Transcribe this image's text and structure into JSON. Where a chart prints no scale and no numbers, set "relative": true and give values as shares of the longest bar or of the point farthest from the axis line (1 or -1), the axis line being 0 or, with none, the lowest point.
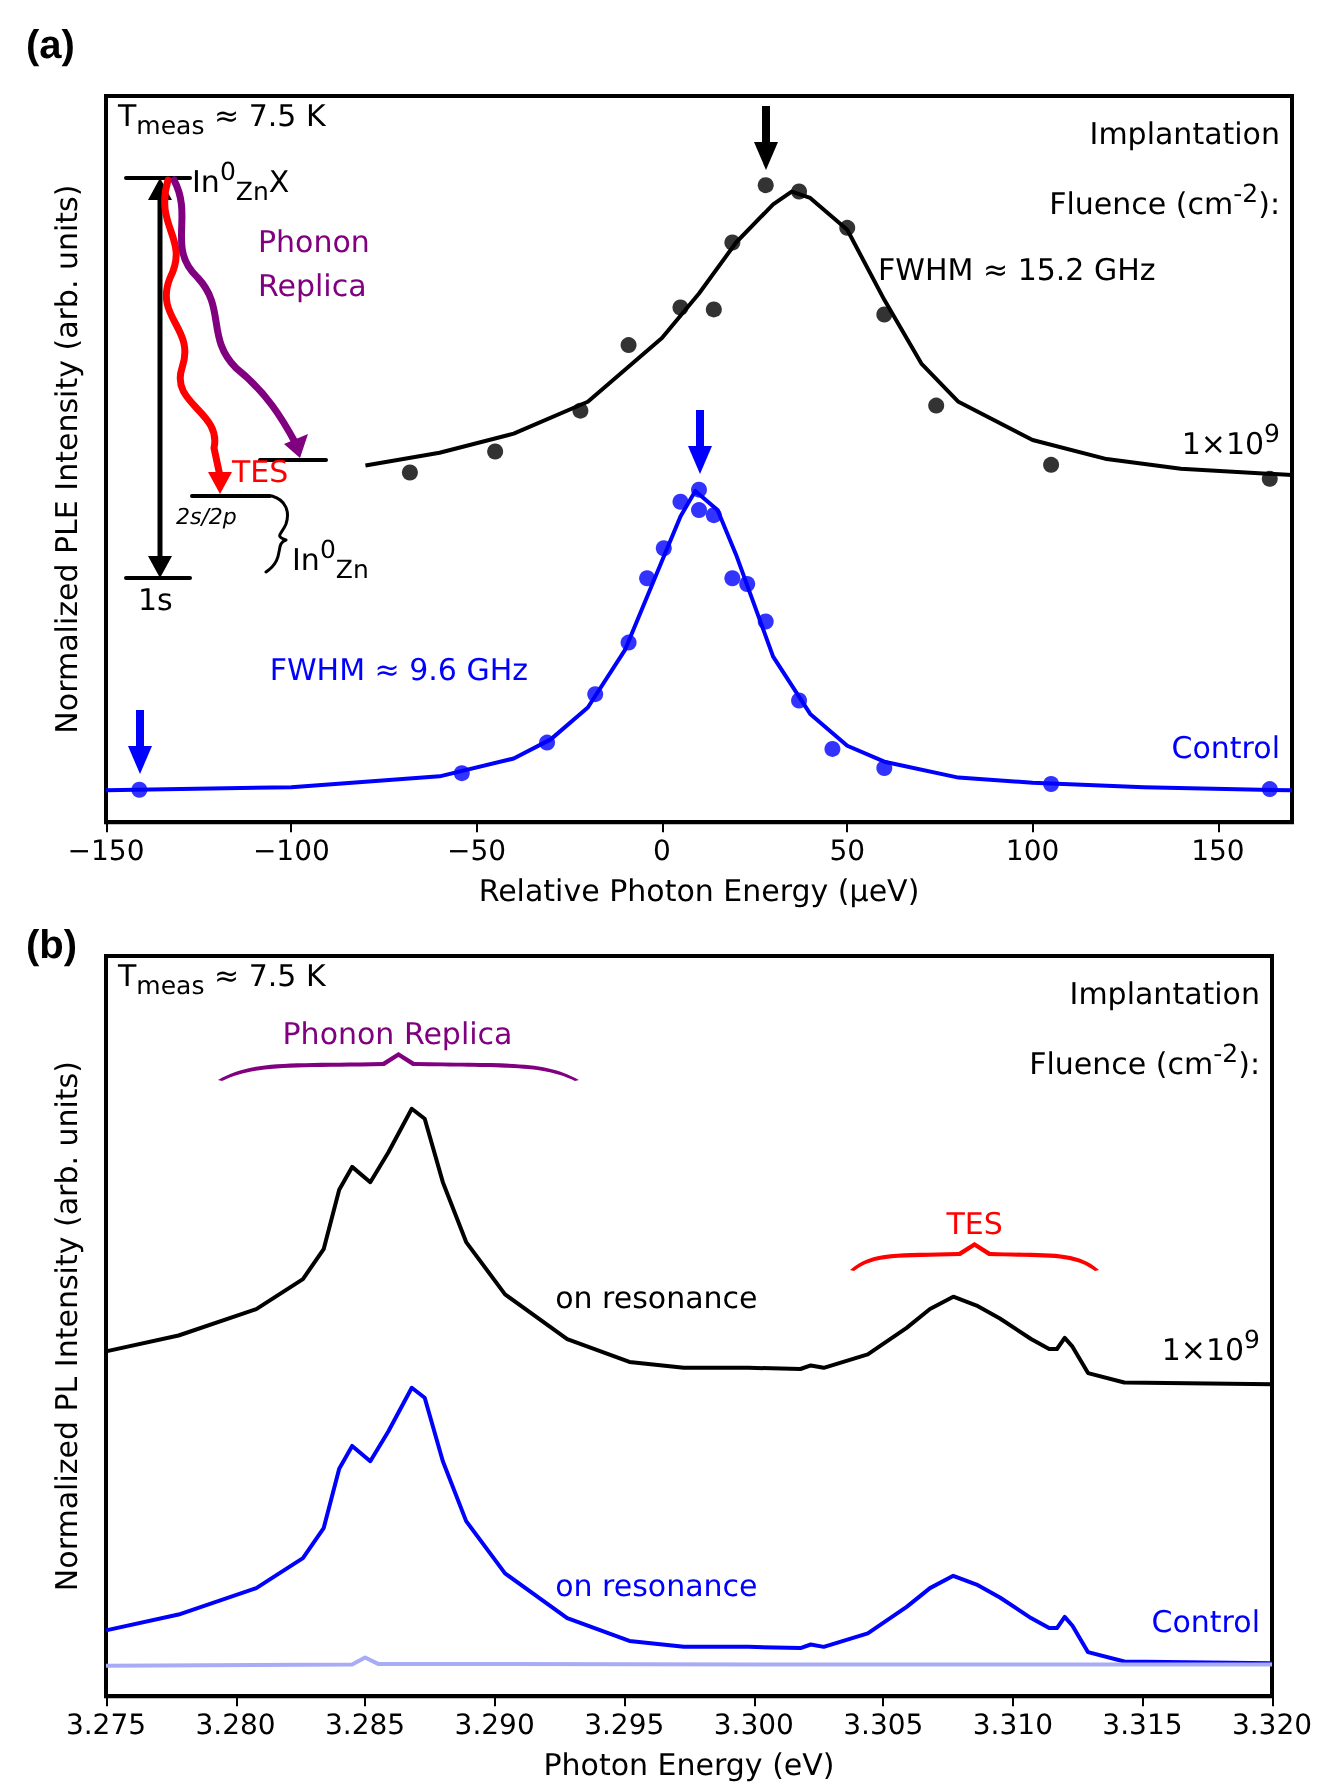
{
  "chart_data": [
    {
      "type": "scatter",
      "title": "(a)",
      "xlabel": "Relative Photon Energy (μeV)",
      "ylabel": "Normalized PLE Intensity (arb. units)",
      "legend_title": "Implantation Fluence (cm$^{-2}$):",
      "relative": true,
      "marker": "circle",
      "xlim": [
        -150,
        170
      ],
      "xticks": [
        -150,
        -100,
        -50,
        0,
        50,
        100,
        150
      ],
      "annotations": [
        "T$_{meas}$ ≈ 7.5 K",
        "FWHM ≈ 15.2 GHz",
        "FWHM ≈ 9.6 GHz",
        "In$^{0}$$_{Zn}$X",
        "Phonon Replica",
        "TES",
        "2s/2p",
        "In$^{0}$$_{Zn}$",
        "1s"
      ],
      "series": [
        {
          "name": "1×10$^{9}$",
          "color": "#000000",
          "x": [
            -68,
            -45,
            -22,
            -9,
            5,
            14,
            19,
            28,
            37,
            50,
            60,
            74,
            105,
            164
          ],
          "values": [
            0.549,
            0.582,
            0.646,
            0.749,
            0.808,
            0.805,
            0.91,
            1.0,
            0.99,
            0.933,
            0.797,
            0.654,
            0.561,
            0.539
          ]
        },
        {
          "type": "line",
          "marker": "none",
          "color": "#000000",
          "x": [
            -80,
            -60,
            -40,
            -20,
            0,
            10,
            20,
            30,
            35,
            40,
            50,
            60,
            70,
            80,
            100,
            120,
            140,
            170
          ],
          "values": [
            0.56,
            0.58,
            0.61,
            0.66,
            0.76,
            0.83,
            0.91,
            0.97,
            0.99,
            0.98,
            0.93,
            0.82,
            0.72,
            0.66,
            0.6,
            0.57,
            0.555,
            0.545
          ]
        },
        {
          "name": "Control",
          "color": "#0000ff",
          "x": [
            -141,
            -54,
            -31,
            -18,
            -9,
            -4,
            0.5,
            5,
            10,
            10,
            14,
            19,
            23,
            28,
            37,
            46,
            60,
            105,
            164
          ],
          "values": [
            0.051,
            0.077,
            0.125,
            0.201,
            0.282,
            0.383,
            0.43,
            0.503,
            0.522,
            0.49,
            0.482,
            0.383,
            0.374,
            0.315,
            0.191,
            0.115,
            0.085,
            0.06,
            0.052
          ]
        },
        {
          "type": "line",
          "marker": "none",
          "color": "#0000ff",
          "x": [
            -150,
            -100,
            -60,
            -40,
            -30,
            -20,
            -10,
            0,
            5,
            9,
            15,
            20,
            25,
            30,
            40,
            50,
            60,
            80,
            100,
            130,
            170
          ],
          "values": [
            0.05,
            0.055,
            0.072,
            0.1,
            0.13,
            0.18,
            0.27,
            0.41,
            0.48,
            0.52,
            0.49,
            0.42,
            0.34,
            0.26,
            0.17,
            0.12,
            0.095,
            0.07,
            0.062,
            0.055,
            0.05
          ]
        }
      ]
    },
    {
      "type": "line",
      "title": "(b)",
      "xlabel": "Photon Energy (eV)",
      "ylabel": "Normalized PL Intensity (arb. units)",
      "legend_title": "Implantation Fluence (cm$^{-2}$):",
      "relative": true,
      "xlim": [
        3.275,
        3.32
      ],
      "xticks": [
        3.275,
        {
          "value": 3.28,
          "label": "3.280"
        },
        3.285,
        {
          "value": 3.29,
          "label": "3.290"
        },
        3.295,
        {
          "value": 3.3,
          "label": "3.300"
        },
        3.305,
        {
          "value": 3.31,
          "label": "3.310"
        },
        3.315,
        {
          "value": 3.32,
          "label": "3.320"
        }
      ],
      "x": [
        3.275,
        3.2778,
        3.2808,
        3.2826,
        3.2834,
        3.284,
        3.2845,
        3.2852,
        3.2859,
        3.2868,
        3.2873,
        3.288,
        3.2889,
        3.2904,
        3.2928,
        3.2952,
        3.2973,
        3.2998,
        3.3018,
        3.3022,
        3.3027,
        3.3044,
        3.3059,
        3.3068,
        3.3077,
        3.3086,
        3.3095,
        3.3107,
        3.3114,
        3.3117,
        3.312,
        3.3123,
        3.3129,
        3.3143,
        3.32
      ],
      "annotations": [
        "T$_{meas}$ ≈ 7.5 K",
        "Phonon Replica",
        "TES",
        "on resonance",
        "on resonance"
      ],
      "series": [
        {
          "name": "1×10$^{9}$",
          "color": "#000000",
          "values": [
            0.587,
            0.614,
            0.659,
            0.71,
            0.761,
            0.862,
            0.901,
            0.875,
            0.926,
            1.0,
            0.983,
            0.875,
            0.773,
            0.684,
            0.608,
            0.569,
            0.559,
            0.559,
            0.557,
            0.563,
            0.559,
            0.582,
            0.627,
            0.659,
            0.68,
            0.665,
            0.643,
            0.608,
            0.591,
            0.591,
            0.61,
            0.595,
            0.55,
            0.534,
            0.531
          ]
        },
        {
          "name": "Control",
          "color": "#0000ff",
          "values": [
            0.112,
            0.139,
            0.184,
            0.235,
            0.286,
            0.387,
            0.426,
            0.4,
            0.451,
            0.525,
            0.508,
            0.4,
            0.298,
            0.209,
            0.133,
            0.094,
            0.084,
            0.084,
            0.082,
            0.088,
            0.084,
            0.107,
            0.152,
            0.184,
            0.205,
            0.19,
            0.168,
            0.133,
            0.116,
            0.116,
            0.135,
            0.12,
            0.075,
            0.059,
            0.056
          ]
        },
        {
          "color": "#a8acf4",
          "x": [
            3.275,
            3.2845,
            3.285,
            3.2855,
            3.302,
            3.32
          ],
          "values": [
            0.052,
            0.054,
            0.066,
            0.055,
            0.054,
            0.054
          ]
        }
      ]
    }
  ]
}
